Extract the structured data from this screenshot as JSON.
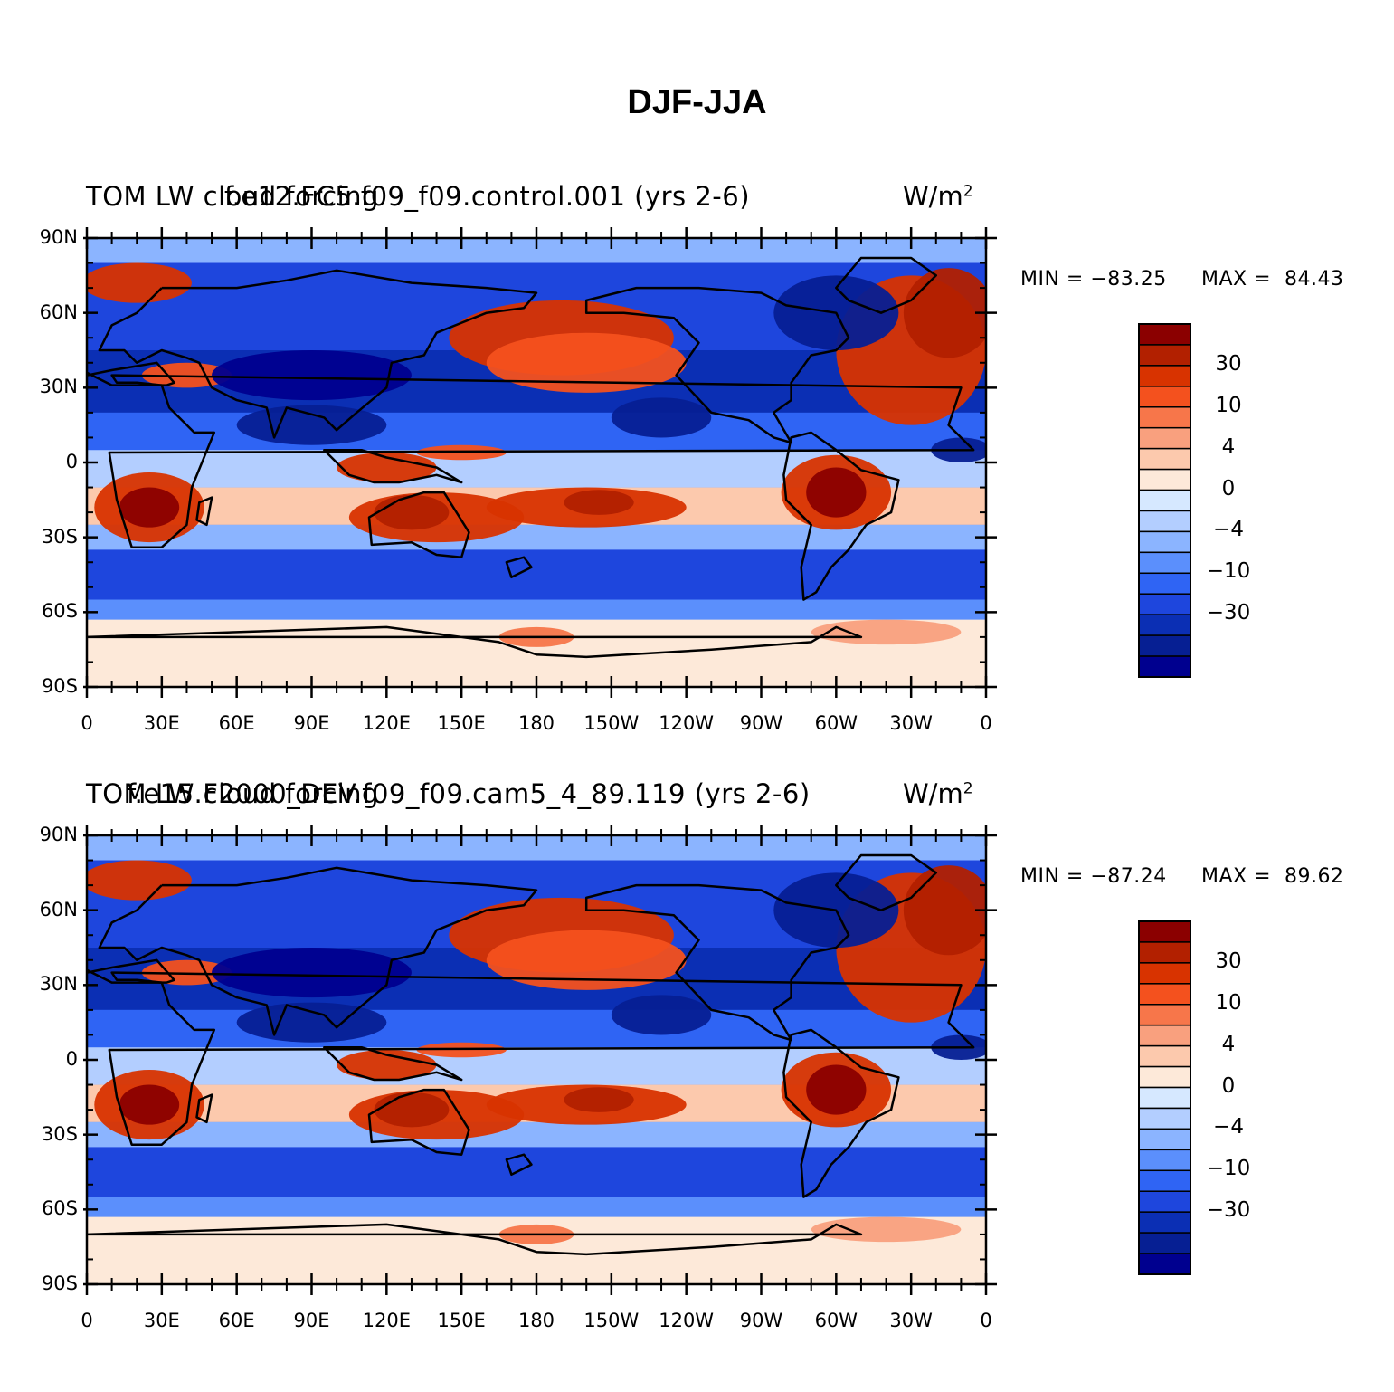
{
  "page": {
    "title": "DJF-JJA"
  },
  "chart_data": [
    {
      "type": "heatmap",
      "title_left": "TOM LW cloud forcing",
      "title_center": "f.e12.FC5.f09_f09.control.001 (yrs 2-6)",
      "units": "W/m",
      "units_power": "2",
      "min_label": "MIN = −83.25",
      "max_label": "MAX =  84.43",
      "min": -83.25,
      "max": 84.43,
      "yticks": [
        "90N",
        "60N",
        "30N",
        "0",
        "30S",
        "60S",
        "90S"
      ],
      "xticks": [
        "0",
        "30E",
        "60E",
        "90E",
        "120E",
        "150E",
        "180",
        "150W",
        "120W",
        "90W",
        "60W",
        "30W",
        "0"
      ],
      "colorbar_labels": [
        "30",
        "10",
        "4",
        "0",
        "−4",
        "−10",
        "−30"
      ],
      "colorbar_levels": [
        -30,
        -20,
        -10,
        -6,
        -4,
        -2,
        0,
        2,
        4,
        6,
        10,
        20,
        30
      ],
      "colorbar_colors": [
        "#8b0000",
        "#b22000",
        "#d83300",
        "#f4511e",
        "#f7764a",
        "#f9a07e",
        "#fcc9ad",
        "#fde9d9",
        "#d6e8ff",
        "#b3ceff",
        "#8bb4ff",
        "#5b8ffc",
        "#2f64f4",
        "#1e46dd",
        "#0b2fb4",
        "#061f93",
        "#00008f"
      ]
    },
    {
      "type": "heatmap",
      "title_left": "TOM LW cloud forcing",
      "title_center": "f.e15.F2000_DEV.f09_f09.cam5_4_89.119 (yrs 2-6)",
      "units": "W/m",
      "units_power": "2",
      "min_label": "MIN = −87.24",
      "max_label": "MAX =  89.62",
      "min": -87.24,
      "max": 89.62,
      "yticks": [
        "90N",
        "60N",
        "30N",
        "0",
        "30S",
        "60S",
        "90S"
      ],
      "xticks": [
        "0",
        "30E",
        "60E",
        "90E",
        "120E",
        "150E",
        "180",
        "150W",
        "120W",
        "90W",
        "60W",
        "30W",
        "0"
      ],
      "colorbar_labels": [
        "30",
        "10",
        "4",
        "0",
        "−4",
        "−10",
        "−30"
      ],
      "colorbar_levels": [
        -30,
        -20,
        -10,
        -6,
        -4,
        -2,
        0,
        2,
        4,
        6,
        10,
        20,
        30
      ],
      "colorbar_colors": [
        "#8b0000",
        "#b22000",
        "#d83300",
        "#f4511e",
        "#f7764a",
        "#f9a07e",
        "#fcc9ad",
        "#fde9d9",
        "#d6e8ff",
        "#b3ceff",
        "#8bb4ff",
        "#5b8ffc",
        "#2f64f4",
        "#1e46dd",
        "#0b2fb4",
        "#061f93",
        "#00008f"
      ]
    }
  ]
}
